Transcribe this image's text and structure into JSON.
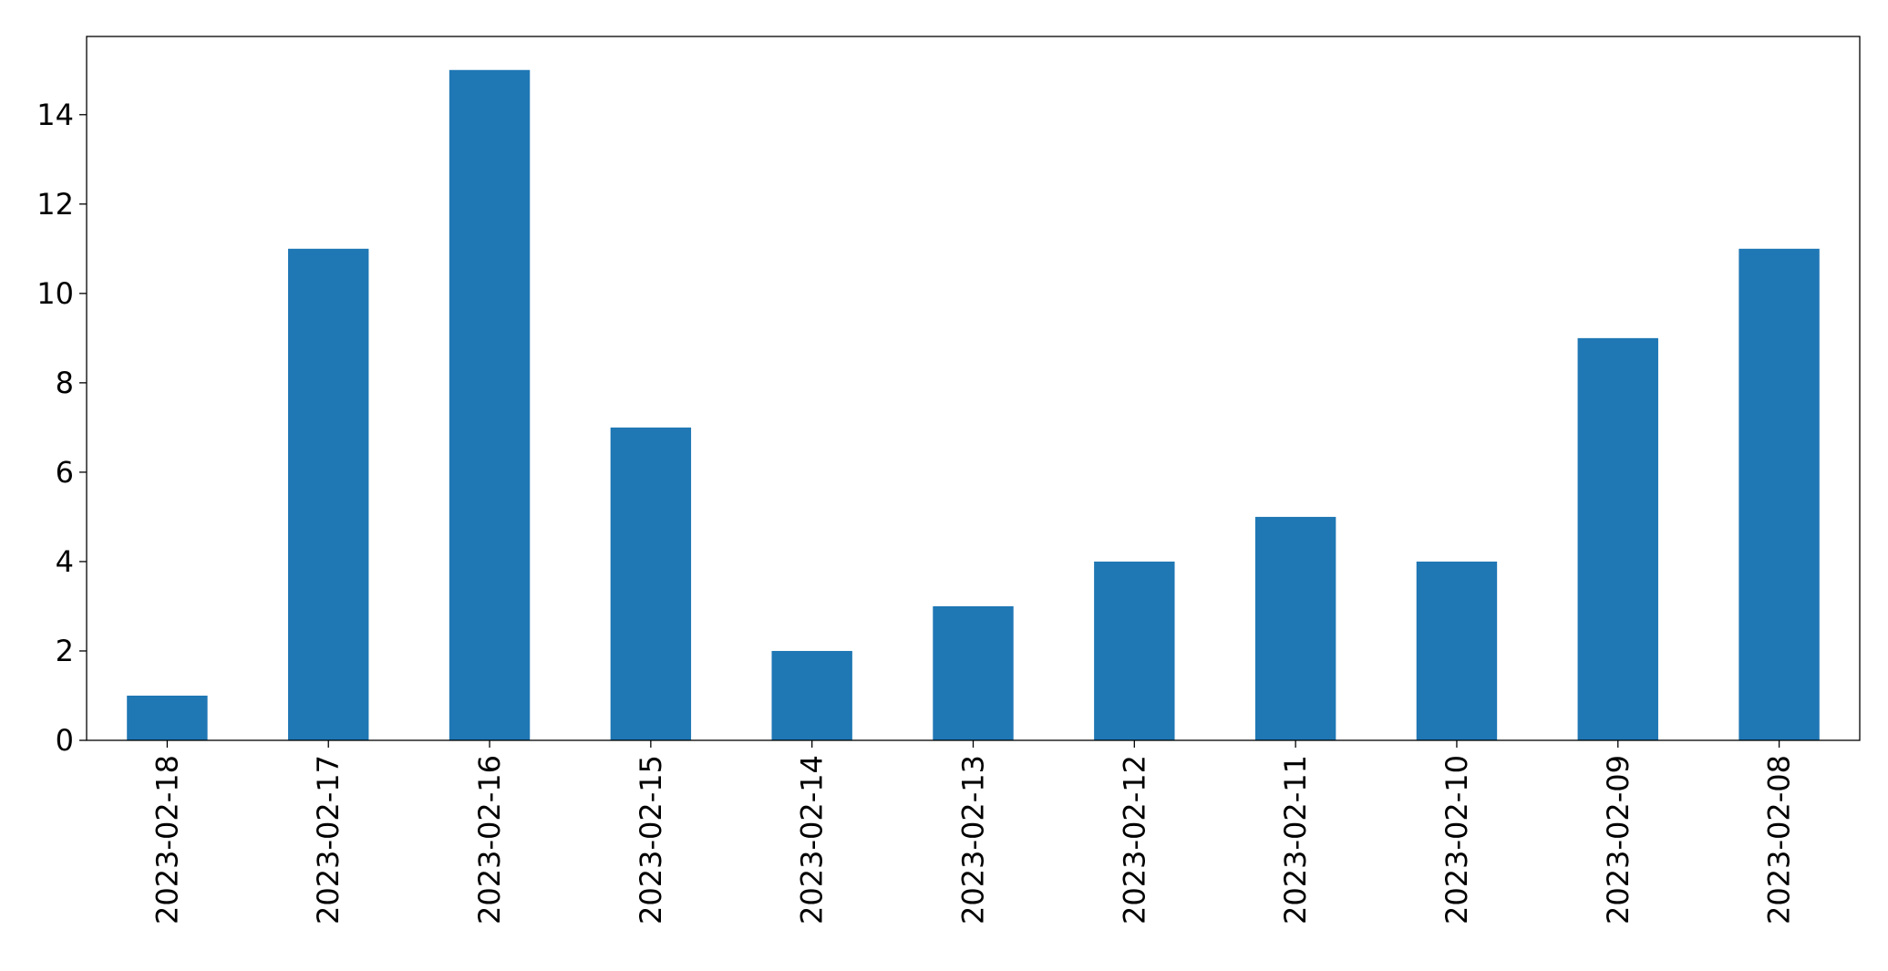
{
  "chart_data": {
    "type": "bar",
    "title": "",
    "xlabel": "",
    "ylabel": "",
    "categories": [
      "2023-02-18",
      "2023-02-17",
      "2023-02-16",
      "2023-02-15",
      "2023-02-14",
      "2023-02-13",
      "2023-02-12",
      "2023-02-11",
      "2023-02-10",
      "2023-02-09",
      "2023-02-08"
    ],
    "values": [
      1,
      11,
      15,
      7,
      2,
      3,
      4,
      5,
      4,
      9,
      11
    ],
    "ylim": [
      0,
      15.75
    ],
    "yticks": [
      "0",
      "2",
      "4",
      "6",
      "8",
      "10",
      "12",
      "14"
    ],
    "bar_color": "#1f77b4",
    "grid": false,
    "legend": "none"
  }
}
